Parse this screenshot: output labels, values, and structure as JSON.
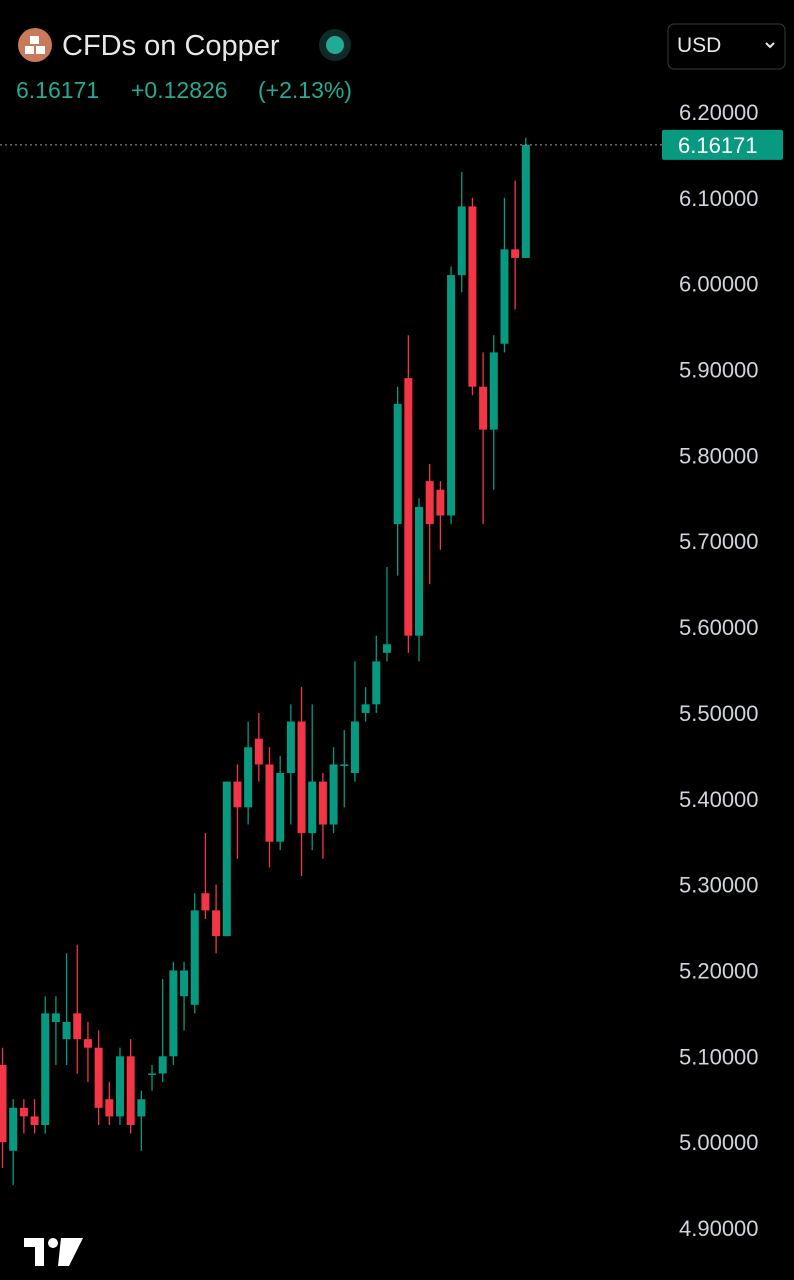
{
  "header": {
    "symbol": "CFDs on Copper",
    "price": "6.16171",
    "change": "+0.12826",
    "change_percent": "(+2.13%)",
    "currency": "USD"
  },
  "chart_data": {
    "type": "candlestick",
    "up_color": "#089981",
    "down_color": "#f23645",
    "open": [
      5.09,
      4.99,
      5.04,
      5.03,
      5.02,
      5.14,
      5.12,
      5.15,
      5.12,
      5.11,
      5.05,
      5.03,
      5.1,
      5.03,
      5.08,
      5.08,
      5.1,
      5.17,
      5.16,
      5.29,
      5.27,
      5.24,
      5.42,
      5.39,
      5.47,
      5.44,
      5.35,
      5.43,
      5.49,
      5.36,
      5.42,
      5.37,
      5.44,
      5.43,
      5.5,
      5.51,
      5.57,
      5.72,
      5.89,
      5.59,
      5.77,
      5.76,
      5.73,
      6.01,
      6.09,
      5.88,
      5.83,
      5.93,
      6.04,
      6.03
    ],
    "high": [
      5.11,
      5.05,
      5.05,
      5.05,
      5.17,
      5.17,
      5.22,
      5.23,
      5.14,
      5.13,
      5.07,
      5.11,
      5.12,
      5.06,
      5.09,
      5.19,
      5.21,
      5.21,
      5.29,
      5.36,
      5.3,
      5.42,
      5.44,
      5.49,
      5.5,
      5.46,
      5.45,
      5.51,
      5.53,
      5.51,
      5.43,
      5.46,
      5.48,
      5.56,
      5.53,
      5.59,
      5.67,
      5.88,
      5.94,
      5.75,
      5.79,
      5.77,
      6.02,
      6.13,
      6.1,
      5.92,
      5.94,
      6.1,
      6.12,
      6.17
    ],
    "low": [
      4.97,
      4.95,
      5.01,
      5.01,
      5.01,
      5.09,
      5.09,
      5.08,
      5.07,
      5.02,
      5.02,
      5.02,
      5.01,
      4.99,
      5.06,
      5.07,
      5.09,
      5.13,
      5.15,
      5.26,
      5.22,
      5.24,
      5.33,
      5.37,
      5.42,
      5.32,
      5.34,
      5.37,
      5.31,
      5.34,
      5.33,
      5.36,
      5.39,
      5.42,
      5.49,
      5.5,
      5.56,
      5.66,
      5.57,
      5.56,
      5.65,
      5.69,
      5.72,
      5.99,
      5.87,
      5.72,
      5.76,
      5.92,
      5.97,
      6.03
    ],
    "close": [
      5.0,
      5.04,
      5.03,
      5.02,
      5.15,
      5.15,
      5.14,
      5.12,
      5.11,
      5.04,
      5.03,
      5.1,
      5.02,
      5.05,
      5.08,
      5.1,
      5.2,
      5.2,
      5.27,
      5.27,
      5.24,
      5.42,
      5.39,
      5.46,
      5.44,
      5.35,
      5.43,
      5.49,
      5.36,
      5.42,
      5.37,
      5.44,
      5.44,
      5.49,
      5.51,
      5.56,
      5.58,
      5.86,
      5.59,
      5.74,
      5.72,
      5.73,
      6.01,
      6.09,
      5.88,
      5.83,
      5.92,
      6.04,
      6.03,
      6.16171
    ],
    "ylim": [
      4.84,
      6.26
    ],
    "yticks": [
      {
        "value": 6.2,
        "label": "6.20000"
      },
      {
        "value": 6.1,
        "label": "6.10000"
      },
      {
        "value": 6.0,
        "label": "6.00000"
      },
      {
        "value": 5.9,
        "label": "5.90000"
      },
      {
        "value": 5.8,
        "label": "5.80000"
      },
      {
        "value": 5.7,
        "label": "5.70000"
      },
      {
        "value": 5.6,
        "label": "5.60000"
      },
      {
        "value": 5.5,
        "label": "5.50000"
      },
      {
        "value": 5.4,
        "label": "5.40000"
      },
      {
        "value": 5.3,
        "label": "5.30000"
      },
      {
        "value": 5.2,
        "label": "5.20000"
      },
      {
        "value": 5.1,
        "label": "5.10000"
      },
      {
        "value": 5.0,
        "label": "5.00000"
      },
      {
        "value": 4.9,
        "label": "4.90000"
      }
    ]
  }
}
